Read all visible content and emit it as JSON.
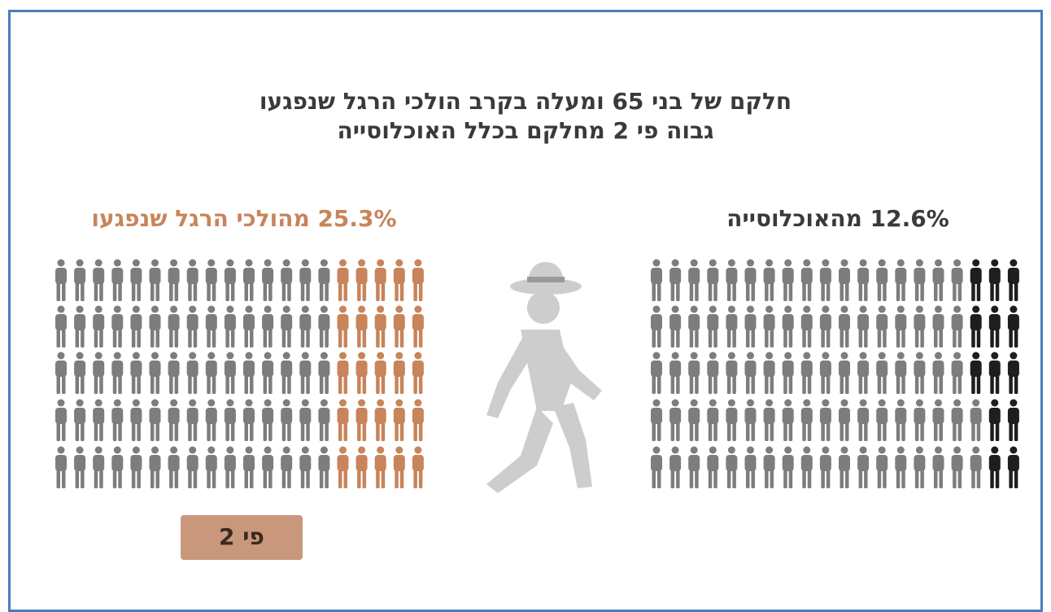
{
  "title": {
    "line1": "חלקם של בני 65 ומעלה בקרב הולכי הרגל שנפגעו",
    "line2": "גבוה פי 2 מחלקם בכלל האוכלוסייה"
  },
  "panels": {
    "population": {
      "label": "12.6% מהאוכלוסייה"
    },
    "pedestrians": {
      "label": "25.3% מהולכי הרגל שנפגעו"
    }
  },
  "badge": {
    "label": "פי 2"
  }
}
